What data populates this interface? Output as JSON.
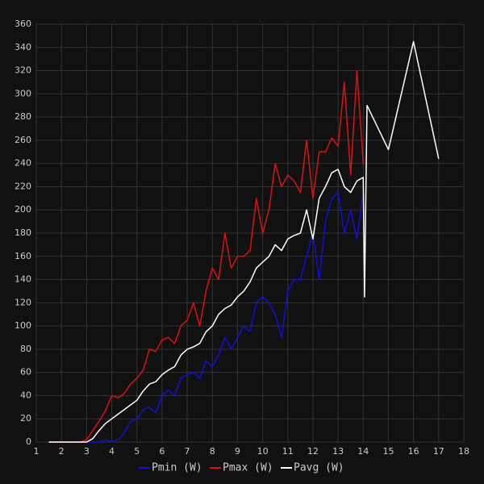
{
  "chart_data": {
    "type": "line",
    "x": [
      1.5,
      1.75,
      2,
      2.25,
      2.5,
      2.75,
      3,
      3.25,
      3.5,
      3.75,
      4,
      4.25,
      4.5,
      4.75,
      5,
      5.25,
      5.5,
      5.75,
      6,
      6.25,
      6.5,
      6.75,
      7,
      7.25,
      7.5,
      7.75,
      8,
      8.25,
      8.5,
      8.75,
      9,
      9.25,
      9.5,
      9.75,
      10,
      10.25,
      10.5,
      10.75,
      11,
      11.25,
      11.5,
      11.75,
      12,
      12.25,
      12.5,
      12.75,
      13,
      13.25,
      13.5,
      13.75,
      14,
      14.05,
      14.15,
      15,
      16,
      17
    ],
    "series": [
      {
        "name": "Pmin (W)",
        "color": "#1010e0",
        "values": [
          0,
          0,
          0,
          0,
          0,
          0,
          0,
          0,
          0,
          2,
          0,
          2,
          8,
          18,
          20,
          28,
          30,
          25,
          40,
          45,
          40,
          55,
          58,
          60,
          55,
          70,
          65,
          75,
          90,
          80,
          90,
          100,
          95,
          120,
          125,
          120,
          110,
          90,
          130,
          140,
          140,
          160,
          180,
          140,
          190,
          210,
          215,
          180,
          200,
          175,
          215,
          null,
          null,
          null,
          null,
          null
        ]
      },
      {
        "name": "Pmax (W)",
        "color": "#dd1111",
        "values": [
          0,
          0,
          0,
          0,
          0,
          0,
          2,
          10,
          18,
          27,
          40,
          38,
          42,
          50,
          55,
          62,
          80,
          78,
          88,
          90,
          85,
          100,
          105,
          120,
          100,
          130,
          150,
          140,
          180,
          150,
          160,
          160,
          165,
          210,
          180,
          200,
          240,
          220,
          230,
          225,
          215,
          260,
          210,
          250,
          250,
          262,
          255,
          310,
          230,
          320,
          240,
          null,
          null,
          null,
          null,
          null
        ]
      },
      {
        "name": "Pavg (W)",
        "color": "#ffffff",
        "values": [
          0,
          0,
          0,
          0,
          0,
          0,
          0,
          3,
          10,
          16,
          20,
          24,
          28,
          32,
          36,
          44,
          50,
          52,
          58,
          62,
          65,
          75,
          80,
          82,
          85,
          95,
          100,
          110,
          115,
          118,
          125,
          130,
          138,
          150,
          155,
          160,
          170,
          165,
          175,
          178,
          180,
          200,
          175,
          210,
          220,
          232,
          235,
          220,
          215,
          225,
          228,
          125,
          290,
          252,
          345,
          244
        ]
      }
    ],
    "xlim": [
      1,
      18
    ],
    "ylim": [
      0,
      360
    ],
    "xticks": [
      1,
      2,
      3,
      4,
      5,
      6,
      7,
      8,
      9,
      10,
      11,
      12,
      13,
      14,
      15,
      16,
      17,
      18
    ],
    "yticks": [
      0,
      20,
      40,
      60,
      80,
      100,
      120,
      140,
      160,
      180,
      200,
      220,
      240,
      260,
      280,
      300,
      320,
      340,
      360
    ],
    "grid": true
  }
}
